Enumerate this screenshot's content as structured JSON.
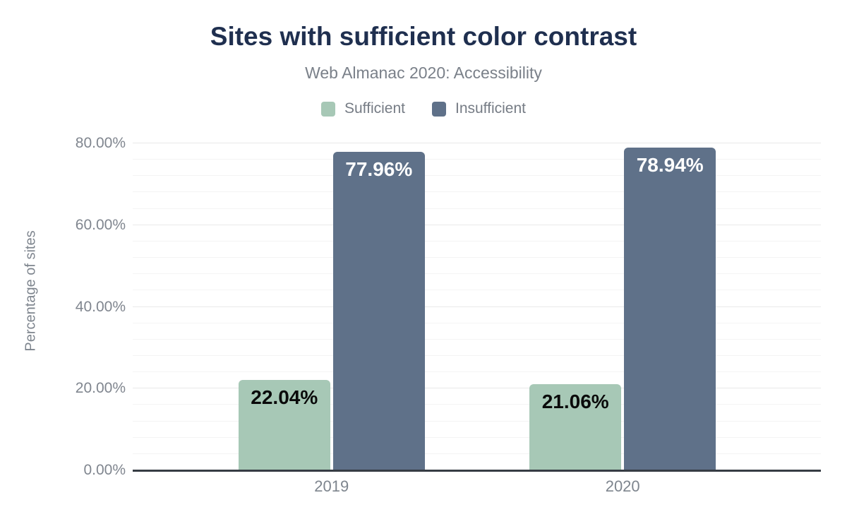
{
  "chart_data": {
    "type": "bar",
    "title": "Sites with sufficient color contrast",
    "subtitle": "Web Almanac 2020: Accessibility",
    "xlabel": "",
    "ylabel": "Percentage of sites",
    "categories": [
      "2019",
      "2020"
    ],
    "series": [
      {
        "name": "Sufficient",
        "color": "#a7c8b6",
        "label_color": "#0a0a0a",
        "values": [
          22.04,
          21.06
        ],
        "labels": [
          "22.04%",
          "21.06%"
        ]
      },
      {
        "name": "Insufficient",
        "color": "#5f7189",
        "label_color": "#ffffff",
        "values": [
          77.96,
          78.94
        ],
        "labels": [
          "77.96%",
          "78.94%"
        ]
      }
    ],
    "ylim": [
      0,
      80
    ],
    "yticks": [
      {
        "value": 0,
        "label": "0.00%"
      },
      {
        "value": 20,
        "label": "20.00%"
      },
      {
        "value": 40,
        "label": "40.00%"
      },
      {
        "value": 60,
        "label": "60.00%"
      },
      {
        "value": 80,
        "label": "80.00%"
      }
    ],
    "grid": {
      "on": true,
      "minor_step": 4,
      "major_step": 20
    },
    "legend_position": "top"
  },
  "colors": {
    "title": "#1f2f4f",
    "subtitle_text": "#7a8089",
    "axis_text": "#80868f",
    "legend_text": "#767c85",
    "baseline": "#363c44",
    "gridline_minor": "#f4f4f4",
    "gridline_major": "#e9e9e9",
    "background": "#ffffff"
  }
}
